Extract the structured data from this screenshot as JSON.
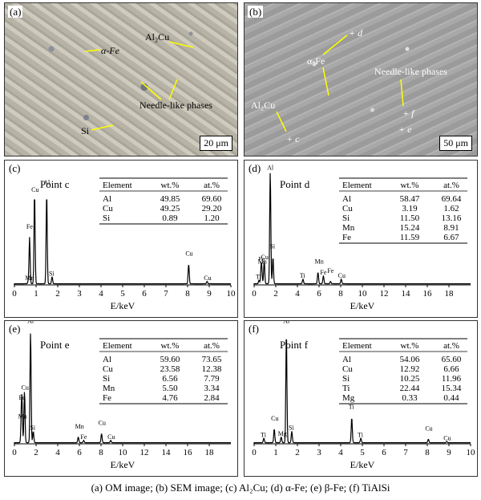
{
  "panel_a": {
    "label": "(a)",
    "annotations": {
      "al2cu": "Al₂Cu",
      "alpha_fe": "α-Fe",
      "needle": "Needle-like phases",
      "si": "Si"
    },
    "scale_bar": "20 μm"
  },
  "panel_b": {
    "label": "(b)",
    "annotations": {
      "d": "+ d",
      "alpha_fe": "α-Fe",
      "needle": "Needle-like phases",
      "f": "+ f",
      "e": "+ e",
      "al2cu": "Al₂Cu",
      "c": "+ c"
    },
    "scale_bar": "50 μm"
  },
  "chart_data": [
    {
      "panel": "(c)",
      "type": "line",
      "point_label": "Point c",
      "xlabel": "E/keV",
      "xlim": [
        0,
        10
      ],
      "xticks": [
        0,
        1,
        2,
        3,
        4,
        5,
        6,
        7,
        8,
        9,
        10
      ],
      "peaks": [
        {
          "label": "Mn",
          "x": 0.64,
          "h": 0.02
        },
        {
          "label": "Fe",
          "x": 0.7,
          "h": 0.4
        },
        {
          "label": "Cu",
          "x": 0.93,
          "h": 0.78
        },
        {
          "label": "Al",
          "x": 1.49,
          "h": 0.78
        },
        {
          "label": "Si",
          "x": 1.74,
          "h": 0.06
        },
        {
          "label": "Cu",
          "x": 8.05,
          "h": 0.17
        },
        {
          "label": "Cu",
          "x": 8.9,
          "h": 0.02
        }
      ],
      "table": {
        "headers": [
          "Element",
          "wt.%",
          "at.%"
        ],
        "rows": [
          [
            "Al",
            "49.85",
            "69.60"
          ],
          [
            "Cu",
            "49.25",
            "29.20"
          ],
          [
            "Si",
            "0.89",
            "1.20"
          ]
        ]
      }
    },
    {
      "panel": "(d)",
      "type": "line",
      "point_label": "Point d",
      "xlabel": "E/keV",
      "xlim": [
        0,
        20
      ],
      "xticks": [
        0,
        2,
        4,
        6,
        8,
        10,
        12,
        14,
        16,
        18
      ],
      "peaks": [
        {
          "label": "Ti",
          "x": 0.45,
          "h": 0.03
        },
        {
          "label": "Mn",
          "x": 0.64,
          "h": 0.1
        },
        {
          "label": "Cu",
          "x": 0.93,
          "h": 0.2
        },
        {
          "label": "Fe",
          "x": 0.7,
          "h": 0.12
        },
        {
          "label": "Al",
          "x": 1.49,
          "h": 0.97
        },
        {
          "label": "Si",
          "x": 1.74,
          "h": 0.23
        },
        {
          "label": "Ti",
          "x": 4.51,
          "h": 0.04
        },
        {
          "label": "Mn",
          "x": 5.9,
          "h": 0.1
        },
        {
          "label": "Fe",
          "x": 6.4,
          "h": 0.07
        },
        {
          "label": "Fe",
          "x": 7.06,
          "h": 0.02
        },
        {
          "label": "Cu",
          "x": 8.05,
          "h": 0.04
        }
      ],
      "table": {
        "headers": [
          "Element",
          "wt.%",
          "at.%"
        ],
        "rows": [
          [
            "Al",
            "58.47",
            "69.64"
          ],
          [
            "Cu",
            "3.19",
            "1.62"
          ],
          [
            "Si",
            "11.50",
            "13.16"
          ],
          [
            "Mn",
            "15.24",
            "8.91"
          ],
          [
            "Fe",
            "11.59",
            "6.67"
          ]
        ]
      }
    },
    {
      "panel": "(e)",
      "type": "line",
      "point_label": "Point e",
      "xlabel": "E/keV",
      "xlim": [
        0,
        20
      ],
      "xticks": [
        0,
        2,
        4,
        6,
        8,
        10,
        12,
        14,
        16,
        18
      ],
      "peaks": [
        {
          "label": "Cu",
          "x": 0.93,
          "h": 0.45
        },
        {
          "label": "Fe",
          "x": 0.7,
          "h": 0.3
        },
        {
          "label": "Mn",
          "x": 0.64,
          "h": 0.2
        },
        {
          "label": "Al",
          "x": 1.49,
          "h": 0.97
        },
        {
          "label": "Si",
          "x": 1.74,
          "h": 0.1
        },
        {
          "label": "Mn",
          "x": 5.9,
          "h": 0.05
        },
        {
          "label": "Fe",
          "x": 6.4,
          "h": 0.02
        },
        {
          "label": "Cu",
          "x": 8.05,
          "h": 0.08
        },
        {
          "label": "Cu",
          "x": 8.9,
          "h": 0.02
        }
      ],
      "table": {
        "headers": [
          "Element",
          "wt.%",
          "at.%"
        ],
        "rows": [
          [
            "Al",
            "59.60",
            "73.65"
          ],
          [
            "Cu",
            "23.58",
            "12.38"
          ],
          [
            "Si",
            "6.56",
            "7.79"
          ],
          [
            "Mn",
            "5.50",
            "3.34"
          ],
          [
            "Fe",
            "4.76",
            "2.84"
          ]
        ]
      }
    },
    {
      "panel": "(f)",
      "type": "line",
      "point_label": "Point f",
      "xlabel": "E/keV",
      "xlim": [
        0,
        10
      ],
      "xticks": [
        0,
        1,
        2,
        3,
        4,
        5,
        6,
        7,
        8,
        9,
        10
      ],
      "peaks": [
        {
          "label": "Ti",
          "x": 0.45,
          "h": 0.04
        },
        {
          "label": "Cu",
          "x": 0.93,
          "h": 0.12
        },
        {
          "label": "Mg",
          "x": 1.25,
          "h": 0.05
        },
        {
          "label": "Al",
          "x": 1.49,
          "h": 0.97
        },
        {
          "label": "Si",
          "x": 1.74,
          "h": 0.1
        },
        {
          "label": "Ti",
          "x": 4.51,
          "h": 0.22
        },
        {
          "label": "Ti",
          "x": 4.93,
          "h": 0.04
        },
        {
          "label": "Cu",
          "x": 8.05,
          "h": 0.03
        },
        {
          "label": "Cu",
          "x": 8.9,
          "h": 0.01
        }
      ],
      "table": {
        "headers": [
          "Element",
          "wt.%",
          "at.%"
        ],
        "rows": [
          [
            "Al",
            "54.06",
            "65.60"
          ],
          [
            "Cu",
            "12.92",
            "6.66"
          ],
          [
            "Si",
            "10.25",
            "11.96"
          ],
          [
            "Ti",
            "22.44",
            "15.34"
          ],
          [
            "Mg",
            "0.33",
            "0.44"
          ]
        ]
      }
    }
  ],
  "caption": "(a) OM image; (b) SEM image; (c) Al₂Cu; (d) α-Fe; (e) β-Fe; (f) TiAlSi"
}
